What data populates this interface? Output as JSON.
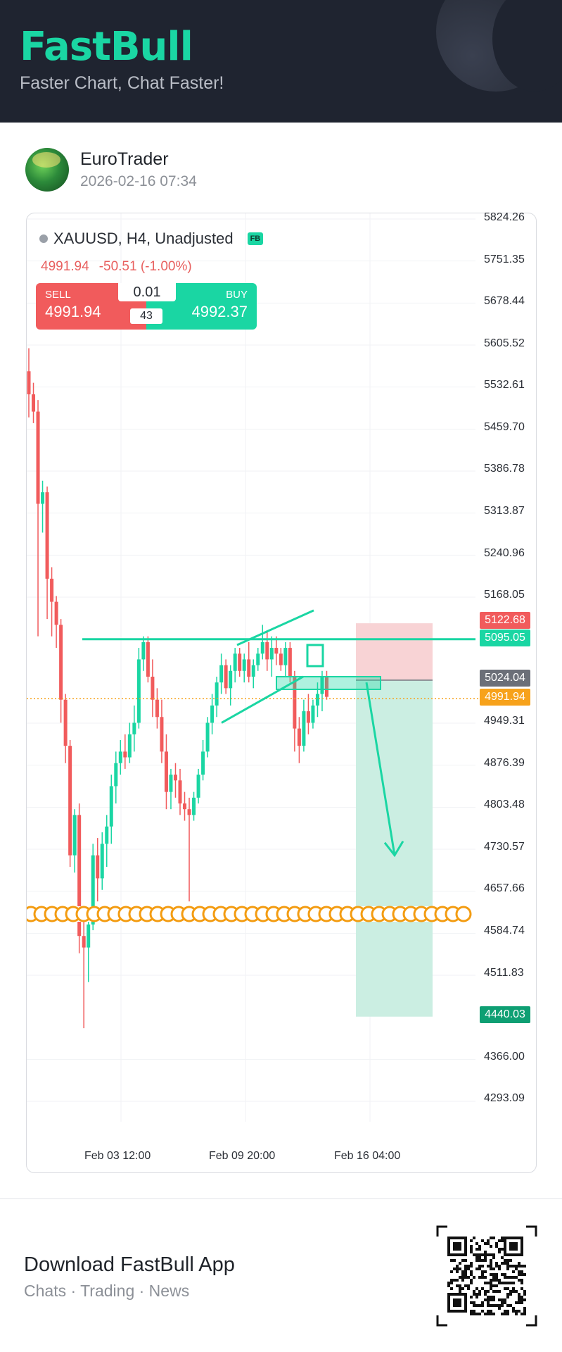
{
  "brand": {
    "logo": "FastBull",
    "tagline": "Faster Chart, Chat Faster!"
  },
  "user": {
    "name": "EuroTrader",
    "timestamp": "2026-02-16 07:34"
  },
  "chart": {
    "symbol": "XAUUSD, H4, Unadjusted",
    "badge": "FB",
    "last_price": "4991.94",
    "change": "-50.51 (-1.00%)",
    "sell_label": "SELL",
    "sell_price": "4991.94",
    "buy_label": "BUY",
    "buy_price": "4992.37",
    "lot": "0.01",
    "spread": "43",
    "y_ticks": [
      "5824.26",
      "5751.35",
      "5678.44",
      "5605.52",
      "5532.61",
      "5459.70",
      "5386.78",
      "5313.87",
      "5240.96",
      "5168.05",
      "4949.31",
      "4876.39",
      "4803.48",
      "4730.57",
      "4657.66",
      "4584.74",
      "4511.83",
      "4366.00",
      "4293.09"
    ],
    "x_ticks": [
      "Feb 03 12:00",
      "Feb 09 20:00",
      "Feb 16 04:00"
    ],
    "price_tags": {
      "stop_loss": "5122.68",
      "resistance": "5095.05",
      "entry": "5024.04",
      "current": "4991.94",
      "take_profit": "4440.03"
    },
    "colors": {
      "up": "#1ad6a3",
      "down": "#f15b5c",
      "current": "#f7a21b",
      "entry": "#6b6f78",
      "tp": "#0e9f73"
    }
  },
  "chart_data": {
    "type": "candlestick",
    "symbol": "XAUUSD",
    "timeframe": "H4",
    "ylim": [
      4293.09,
      5824.26
    ],
    "annotations": {
      "horizontal_level": 5095.05,
      "entry": 5024.04,
      "stop_loss": 5122.68,
      "take_profit": 4440.03,
      "current_price": 4991.94
    },
    "x_labels": [
      "Feb 03 12:00",
      "Feb 09 20:00",
      "Feb 16 04:00"
    ]
  },
  "footer": {
    "title": "Download FastBull App",
    "subtitle": "Chats · Trading · News"
  }
}
